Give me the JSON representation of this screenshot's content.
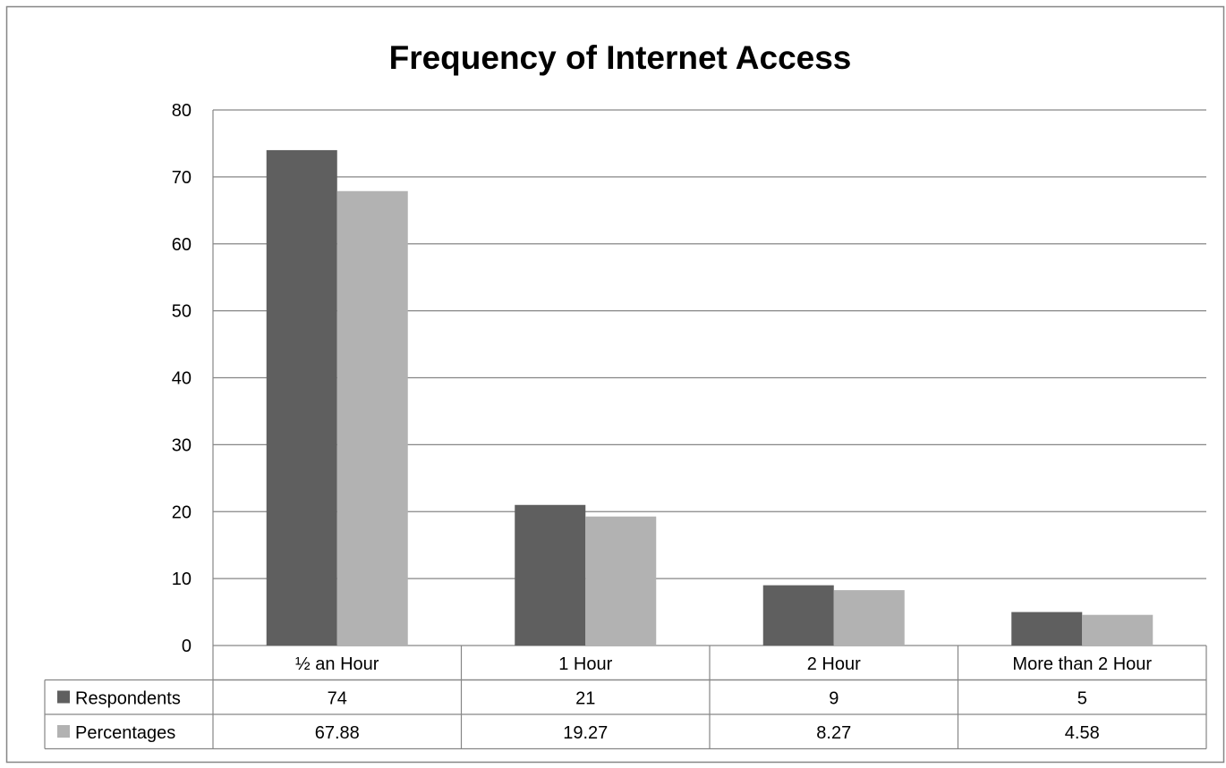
{
  "chart_data": {
    "type": "bar",
    "title": "Frequency of Internet Access",
    "categories": [
      "½ an Hour",
      "1 Hour",
      "2 Hour",
      "More than 2 Hour"
    ],
    "series": [
      {
        "name": "Respondents",
        "values": [
          74,
          21,
          9,
          5
        ],
        "labels": [
          "74",
          "21",
          "9",
          "5"
        ],
        "color": "#5f5f5f"
      },
      {
        "name": "Percentages",
        "values": [
          67.88,
          19.27,
          8.27,
          4.58
        ],
        "labels": [
          "67.88",
          "19.27",
          "8.27",
          "4.58"
        ],
        "color": "#b2b2b2"
      }
    ],
    "yticks": [
      "0",
      "10",
      "20",
      "30",
      "40",
      "50",
      "60",
      "70",
      "80"
    ],
    "ylim": [
      0,
      80
    ],
    "xlabel": "",
    "ylabel": "",
    "grid": true,
    "legend": "data-table-left",
    "data_table": true
  }
}
